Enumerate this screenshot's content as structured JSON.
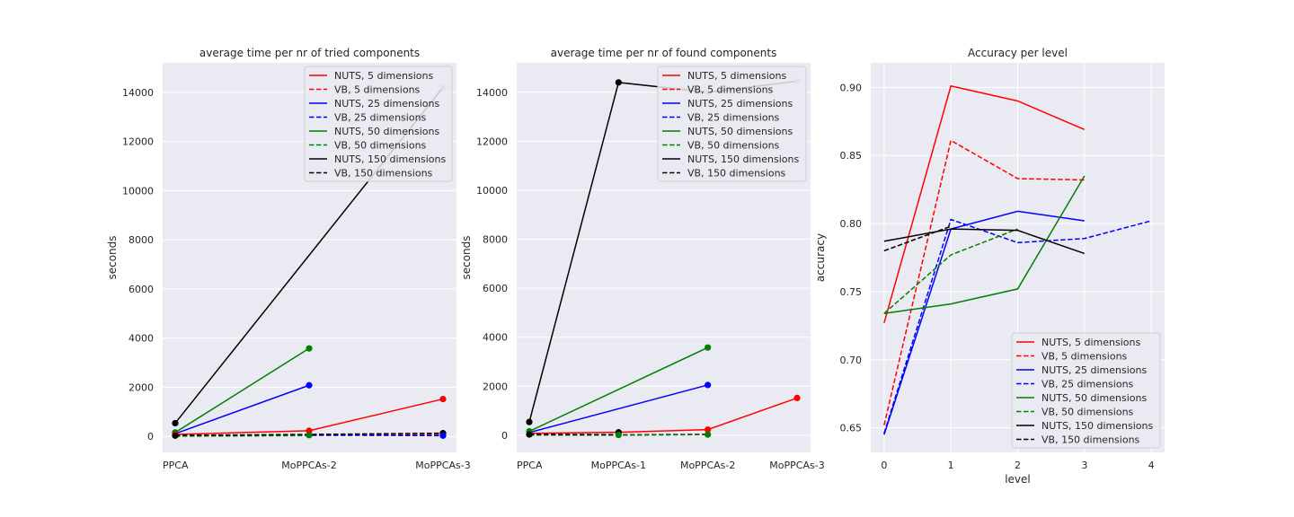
{
  "chart_data": [
    {
      "type": "line",
      "title": "average time per nr of tried components",
      "xlabel": "",
      "ylabel": "seconds",
      "categories": [
        "PPCA",
        "MoPPCAs-2",
        "MoPPCAs-3"
      ],
      "ylim": [
        -650,
        15200
      ],
      "yticks": [
        0,
        2000,
        4000,
        6000,
        8000,
        10000,
        12000,
        14000
      ],
      "grid": true,
      "legend_position": "top-right",
      "series": [
        {
          "name": "NUTS, 5 dimensions",
          "color": "#ff0000",
          "dash": "solid",
          "values": [
            80,
            230,
            1520
          ]
        },
        {
          "name": "VB, 5 dimensions",
          "color": "#ff0000",
          "dash": "dashed",
          "values": [
            20,
            40,
            70
          ]
        },
        {
          "name": "NUTS, 25 dimensions",
          "color": "#0000ff",
          "dash": "solid",
          "values": [
            110,
            2080,
            null
          ]
        },
        {
          "name": "VB, 25 dimensions",
          "color": "#0000ff",
          "dash": "dashed",
          "values": [
            15,
            50,
            30
          ]
        },
        {
          "name": "NUTS, 50 dimensions",
          "color": "#008000",
          "dash": "solid",
          "values": [
            160,
            3580,
            null
          ]
        },
        {
          "name": "VB, 50 dimensions",
          "color": "#008000",
          "dash": "dashed",
          "values": [
            10,
            30,
            null
          ]
        },
        {
          "name": "NUTS, 150 dimensions",
          "color": "#000000",
          "dash": "solid",
          "values": [
            540,
            null,
            14200
          ]
        },
        {
          "name": "VB, 150 dimensions",
          "color": "#000000",
          "dash": "dashed",
          "values": [
            40,
            80,
            130
          ]
        }
      ],
      "markers": [
        {
          "x": 0,
          "y": 540,
          "color": "#000000"
        },
        {
          "x": 0,
          "y": 160,
          "color": "#008000"
        },
        {
          "x": 0,
          "y": 80,
          "color": "#ff0000"
        },
        {
          "x": 0,
          "y": 30,
          "color": "#000000"
        },
        {
          "x": 1,
          "y": 3580,
          "color": "#008000"
        },
        {
          "x": 1,
          "y": 2080,
          "color": "#0000ff"
        },
        {
          "x": 1,
          "y": 230,
          "color": "#ff0000"
        },
        {
          "x": 1,
          "y": 50,
          "color": "#008000"
        },
        {
          "x": 2,
          "y": 14200,
          "color": "#b0b0b0"
        },
        {
          "x": 2,
          "y": 1520,
          "color": "#ff0000"
        },
        {
          "x": 2,
          "y": 130,
          "color": "#000000"
        },
        {
          "x": 2,
          "y": 30,
          "color": "#0000ff"
        }
      ]
    },
    {
      "type": "line",
      "title": "average time per nr of found components",
      "xlabel": "",
      "ylabel": "seconds",
      "categories": [
        "PPCA",
        "MoPPCAs-1",
        "MoPPCAs-2",
        "MoPPCAs-3"
      ],
      "ylim": [
        -700,
        15200
      ],
      "yticks": [
        0,
        2000,
        4000,
        6000,
        8000,
        10000,
        12000,
        14000
      ],
      "grid": true,
      "legend_position": "top-right",
      "series": [
        {
          "name": "NUTS, 5 dimensions",
          "color": "#ff0000",
          "dash": "solid",
          "values": [
            80,
            120,
            230,
            1520
          ]
        },
        {
          "name": "VB, 5 dimensions",
          "color": "#ff0000",
          "dash": "dashed",
          "values": [
            20,
            20,
            40,
            null
          ]
        },
        {
          "name": "NUTS, 25 dimensions",
          "color": "#0000ff",
          "dash": "solid",
          "values": [
            110,
            null,
            2050,
            null
          ]
        },
        {
          "name": "VB, 25 dimensions",
          "color": "#0000ff",
          "dash": "dashed",
          "values": [
            15,
            10,
            30,
            null
          ]
        },
        {
          "name": "NUTS, 50 dimensions",
          "color": "#008000",
          "dash": "solid",
          "values": [
            160,
            null,
            3580,
            null
          ]
        },
        {
          "name": "VB, 50 dimensions",
          "color": "#008000",
          "dash": "dashed",
          "values": [
            10,
            5,
            25,
            null
          ]
        },
        {
          "name": "NUTS, 150 dimensions",
          "color": "#000000",
          "dash": "solid",
          "values": [
            540,
            14400,
            14000,
            14450
          ]
        },
        {
          "name": "VB, 150 dimensions",
          "color": "#000000",
          "dash": "dashed",
          "values": [
            40,
            20,
            null,
            null
          ]
        }
      ],
      "markers": [
        {
          "x": 0,
          "y": 540,
          "color": "#000000"
        },
        {
          "x": 0,
          "y": 160,
          "color": "#008000"
        },
        {
          "x": 0,
          "y": 30,
          "color": "#000000"
        },
        {
          "x": 1,
          "y": 14400,
          "color": "#000000"
        },
        {
          "x": 1,
          "y": 120,
          "color": "#000000"
        },
        {
          "x": 1,
          "y": 10,
          "color": "#008000"
        },
        {
          "x": 2,
          "y": 14000,
          "color": "#b0b0b0"
        },
        {
          "x": 2,
          "y": 3580,
          "color": "#008000"
        },
        {
          "x": 2,
          "y": 2050,
          "color": "#0000ff"
        },
        {
          "x": 2,
          "y": 230,
          "color": "#ff0000"
        },
        {
          "x": 2,
          "y": 25,
          "color": "#008000"
        },
        {
          "x": 3,
          "y": 14450,
          "color": "#b0b0b0"
        },
        {
          "x": 3,
          "y": 1520,
          "color": "#ff0000"
        }
      ]
    },
    {
      "type": "line",
      "title": "Accuracy per level",
      "xlabel": "level",
      "ylabel": "accuracy",
      "x": [
        0,
        1,
        2,
        3,
        4
      ],
      "xlim": [
        -0.2,
        4.2
      ],
      "ylim": [
        0.632,
        0.918
      ],
      "yticks": [
        0.65,
        0.7,
        0.75,
        0.8,
        0.85,
        0.9
      ],
      "ytick_labels": [
        "0.65",
        "0.70",
        "0.75",
        "0.80",
        "0.85",
        "0.90"
      ],
      "xticks": [
        0,
        1,
        2,
        3,
        4
      ],
      "grid": true,
      "legend_position": "lower-right",
      "series": [
        {
          "name": "NUTS, 5 dimensions",
          "color": "#ff0000",
          "dash": "solid",
          "values": [
            0.727,
            0.901,
            0.89,
            0.869,
            null
          ]
        },
        {
          "name": "VB, 5 dimensions",
          "color": "#ff0000",
          "dash": "dashed",
          "values": [
            0.652,
            0.861,
            0.833,
            0.832,
            null
          ]
        },
        {
          "name": "NUTS, 25 dimensions",
          "color": "#0000ff",
          "dash": "solid",
          "values": [
            0.645,
            0.796,
            0.809,
            0.802,
            null
          ]
        },
        {
          "name": "VB, 25 dimensions",
          "color": "#0000ff",
          "dash": "dashed",
          "values": [
            0.646,
            0.803,
            0.786,
            0.789,
            0.802
          ]
        },
        {
          "name": "NUTS, 50 dimensions",
          "color": "#008000",
          "dash": "solid",
          "values": [
            0.734,
            0.741,
            0.752,
            0.835,
            null
          ]
        },
        {
          "name": "VB, 50 dimensions",
          "color": "#008000",
          "dash": "dashed",
          "values": [
            0.734,
            0.777,
            0.796,
            null,
            null
          ]
        },
        {
          "name": "NUTS, 150 dimensions",
          "color": "#000000",
          "dash": "solid",
          "values": [
            0.787,
            0.796,
            0.795,
            0.778,
            null
          ]
        },
        {
          "name": "VB, 150 dimensions",
          "color": "#000000",
          "dash": "dashed",
          "values": [
            0.78,
            0.798,
            null,
            null,
            null
          ]
        }
      ]
    }
  ]
}
